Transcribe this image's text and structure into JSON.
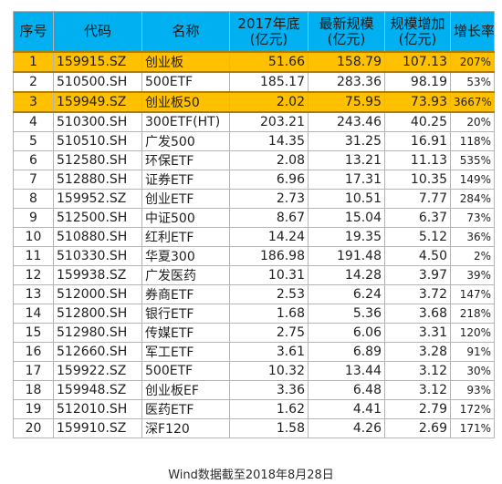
{
  "header": {
    "idx": "序号",
    "code": "代码",
    "name": "名称",
    "end2017_line1": "2017年底",
    "end2017_line2": "(亿元)",
    "latest_line1": "最新规模",
    "latest_line2": "(亿元)",
    "increase_line1": "规模增加",
    "increase_line2": "(亿元)",
    "growth": "增长率"
  },
  "rows": [
    {
      "idx": "1",
      "code": "159915.SZ",
      "name": "创业板",
      "end2017": "51.66",
      "latest": "158.79",
      "increase": "107.13",
      "growth": "207%",
      "highlight": true
    },
    {
      "idx": "2",
      "code": "510500.SH",
      "name": "500ETF",
      "end2017": "185.17",
      "latest": "283.36",
      "increase": "98.19",
      "growth": "53%",
      "highlight": false
    },
    {
      "idx": "3",
      "code": "159949.SZ",
      "name": "创业板50",
      "end2017": "2.02",
      "latest": "75.95",
      "increase": "73.93",
      "growth": "3667%",
      "highlight": true
    },
    {
      "idx": "4",
      "code": "510300.SH",
      "name": "300ETF(HT)",
      "end2017": "203.21",
      "latest": "243.46",
      "increase": "40.25",
      "growth": "20%",
      "highlight": false
    },
    {
      "idx": "5",
      "code": "510510.SH",
      "name": "广发500",
      "end2017": "14.35",
      "latest": "31.25",
      "increase": "16.91",
      "growth": "118%",
      "highlight": false
    },
    {
      "idx": "6",
      "code": "512580.SH",
      "name": "环保ETF",
      "end2017": "2.08",
      "latest": "13.21",
      "increase": "11.13",
      "growth": "535%",
      "highlight": false
    },
    {
      "idx": "7",
      "code": "512880.SH",
      "name": "证券ETF",
      "end2017": "6.96",
      "latest": "17.31",
      "increase": "10.35",
      "growth": "149%",
      "highlight": false
    },
    {
      "idx": "8",
      "code": "159952.SZ",
      "name": "创业ETF",
      "end2017": "2.73",
      "latest": "10.51",
      "increase": "7.77",
      "growth": "284%",
      "highlight": false
    },
    {
      "idx": "9",
      "code": "512500.SH",
      "name": "中证500",
      "end2017": "8.67",
      "latest": "15.04",
      "increase": "6.37",
      "growth": "73%",
      "highlight": false
    },
    {
      "idx": "10",
      "code": "510880.SH",
      "name": "红利ETF",
      "end2017": "14.24",
      "latest": "19.35",
      "increase": "5.12",
      "growth": "36%",
      "highlight": false
    },
    {
      "idx": "11",
      "code": "510330.SH",
      "name": "华夏300",
      "end2017": "186.98",
      "latest": "191.48",
      "increase": "4.50",
      "growth": "2%",
      "highlight": false
    },
    {
      "idx": "12",
      "code": "159938.SZ",
      "name": "广发医药",
      "end2017": "10.31",
      "latest": "14.28",
      "increase": "3.97",
      "growth": "39%",
      "highlight": false
    },
    {
      "idx": "13",
      "code": "512000.SH",
      "name": "券商ETF",
      "end2017": "2.53",
      "latest": "6.24",
      "increase": "3.72",
      "growth": "147%",
      "highlight": false
    },
    {
      "idx": "14",
      "code": "512800.SH",
      "name": "银行ETF",
      "end2017": "1.68",
      "latest": "5.36",
      "increase": "3.68",
      "growth": "218%",
      "highlight": false
    },
    {
      "idx": "15",
      "code": "512980.SH",
      "name": "传媒ETF",
      "end2017": "2.75",
      "latest": "6.06",
      "increase": "3.31",
      "growth": "120%",
      "highlight": false
    },
    {
      "idx": "16",
      "code": "512660.SH",
      "name": "军工ETF",
      "end2017": "3.61",
      "latest": "6.89",
      "increase": "3.28",
      "growth": "91%",
      "highlight": false
    },
    {
      "idx": "17",
      "code": "159922.SZ",
      "name": "500ETF",
      "end2017": "10.32",
      "latest": "13.44",
      "increase": "3.12",
      "growth": "30%",
      "highlight": false
    },
    {
      "idx": "18",
      "code": "159948.SZ",
      "name": "创业板EF",
      "end2017": "3.36",
      "latest": "6.48",
      "increase": "3.12",
      "growth": "93%",
      "highlight": false
    },
    {
      "idx": "19",
      "code": "512010.SH",
      "name": "医药ETF",
      "end2017": "1.62",
      "latest": "4.41",
      "increase": "2.79",
      "growth": "172%",
      "highlight": false
    },
    {
      "idx": "20",
      "code": "159910.SZ",
      "name": "深F120",
      "end2017": "1.58",
      "latest": "4.26",
      "increase": "2.69",
      "growth": "171%",
      "highlight": false
    }
  ],
  "caption": "Wind数据截至2018年8月28日",
  "colors": {
    "header_bg": "#00b0f0",
    "highlight_bg": "#ffc000",
    "grid_line": "#b4b4b4"
  }
}
